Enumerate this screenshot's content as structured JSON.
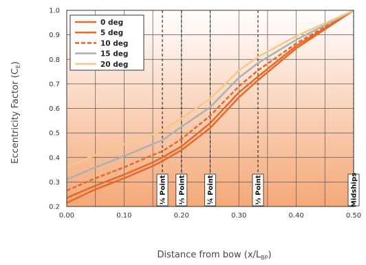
{
  "chart_data": {
    "type": "line",
    "xlabel": {
      "main": "Distance from bow (x/L",
      "sub": "BP",
      "close": ")"
    },
    "ylabel": {
      "main": "Eccentricity Factor (C",
      "sub": "E",
      "close": ")"
    },
    "xlim": [
      0,
      0.5
    ],
    "ylim": [
      0.2,
      1.0
    ],
    "xticks": [
      0,
      0.1,
      0.2,
      0.3,
      0.4,
      0.5
    ],
    "xtick_labels": [
      "0.00",
      "0.10",
      "0.20",
      "0.30",
      "0.40",
      "0.50"
    ],
    "yticks": [
      0.2,
      0.3,
      0.4,
      0.5,
      0.6,
      0.7,
      0.8,
      0.9,
      1.0
    ],
    "ytick_labels": [
      "0.2",
      "0.3",
      "0.4",
      "0.5",
      "0.6",
      "0.7",
      "0.8",
      "0.9",
      "1.0"
    ],
    "grid": true,
    "legend_position": "top-left",
    "background_gradient": {
      "top": "#ffffff",
      "bottom": "#f4a877"
    },
    "vertical_lines": [
      {
        "x": 0.1667,
        "label": "⅙ Point"
      },
      {
        "x": 0.2,
        "label": "⅕ Point"
      },
      {
        "x": 0.25,
        "label": "¼ Point"
      },
      {
        "x": 0.3333,
        "label": "⅓ Point"
      },
      {
        "x": 0.5,
        "label": "Midships"
      }
    ],
    "series": [
      {
        "name": "0 deg",
        "color": "#e8692a",
        "dash": false,
        "x": [
          0,
          0.05,
          0.1,
          0.15,
          0.1667,
          0.2,
          0.25,
          0.3,
          0.3333,
          0.4,
          0.5
        ],
        "y": [
          0.215,
          0.27,
          0.315,
          0.365,
          0.385,
          0.43,
          0.52,
          0.645,
          0.715,
          0.845,
          1.0
        ]
      },
      {
        "name": "5 deg",
        "color": "#e8692a",
        "dash": false,
        "x": [
          0,
          0.05,
          0.1,
          0.15,
          0.1667,
          0.2,
          0.25,
          0.3,
          0.3333,
          0.4,
          0.5
        ],
        "y": [
          0.235,
          0.285,
          0.33,
          0.38,
          0.4,
          0.445,
          0.54,
          0.665,
          0.73,
          0.855,
          1.0
        ]
      },
      {
        "name": "10 deg",
        "color": "#e8692a",
        "dash": true,
        "x": [
          0,
          0.05,
          0.1,
          0.15,
          0.1667,
          0.2,
          0.25,
          0.3,
          0.3333,
          0.4,
          0.5
        ],
        "y": [
          0.265,
          0.315,
          0.36,
          0.41,
          0.425,
          0.475,
          0.57,
          0.69,
          0.755,
          0.865,
          1.0
        ]
      },
      {
        "name": "15 deg",
        "color": "#b0b0b0",
        "dash": false,
        "x": [
          0,
          0.05,
          0.1,
          0.15,
          0.1667,
          0.2,
          0.25,
          0.3,
          0.3333,
          0.4,
          0.5
        ],
        "y": [
          0.31,
          0.36,
          0.405,
          0.455,
          0.47,
          0.525,
          0.605,
          0.725,
          0.785,
          0.88,
          1.0
        ]
      },
      {
        "name": "20 deg",
        "color": "#f5c98a",
        "dash": false,
        "x": [
          0,
          0.05,
          0.1,
          0.15,
          0.1667,
          0.2,
          0.25,
          0.3,
          0.3333,
          0.4,
          0.5
        ],
        "y": [
          0.36,
          0.41,
          0.455,
          0.495,
          0.51,
          0.56,
          0.64,
          0.755,
          0.81,
          0.895,
          1.0
        ]
      }
    ]
  }
}
